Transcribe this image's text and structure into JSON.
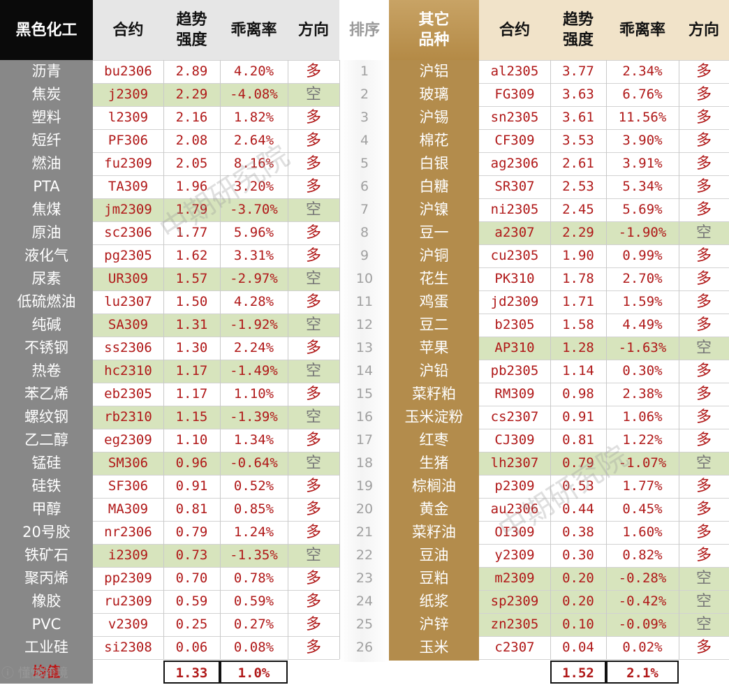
{
  "left": {
    "headers": {
      "category": "黑色化工",
      "contract": "合约",
      "trend": "趋势\n强度",
      "deviation": "乖离率",
      "direction": "方向"
    },
    "rows": [
      {
        "name": "沥青",
        "contract": "bu2306",
        "trend": "2.89",
        "deviation": "4.20%",
        "direction": "多"
      },
      {
        "name": "焦炭",
        "contract": "j2309",
        "trend": "2.29",
        "deviation": "-4.08%",
        "direction": "空"
      },
      {
        "name": "塑料",
        "contract": "l2309",
        "trend": "2.16",
        "deviation": "1.82%",
        "direction": "多"
      },
      {
        "name": "短纤",
        "contract": "PF306",
        "trend": "2.08",
        "deviation": "2.64%",
        "direction": "多"
      },
      {
        "name": "燃油",
        "contract": "fu2309",
        "trend": "2.05",
        "deviation": "8.16%",
        "direction": "多"
      },
      {
        "name": "PTA",
        "contract": "TA309",
        "trend": "1.96",
        "deviation": "3.20%",
        "direction": "多"
      },
      {
        "name": "焦煤",
        "contract": "jm2309",
        "trend": "1.79",
        "deviation": "-3.70%",
        "direction": "空"
      },
      {
        "name": "原油",
        "contract": "sc2306",
        "trend": "1.77",
        "deviation": "5.96%",
        "direction": "多"
      },
      {
        "name": "液化气",
        "contract": "pg2305",
        "trend": "1.62",
        "deviation": "3.31%",
        "direction": "多"
      },
      {
        "name": "尿素",
        "contract": "UR309",
        "trend": "1.57",
        "deviation": "-2.97%",
        "direction": "空"
      },
      {
        "name": "低硫燃油",
        "contract": "lu2307",
        "trend": "1.50",
        "deviation": "4.28%",
        "direction": "多"
      },
      {
        "name": "纯碱",
        "contract": "SA309",
        "trend": "1.31",
        "deviation": "-1.92%",
        "direction": "空"
      },
      {
        "name": "不锈钢",
        "contract": "ss2306",
        "trend": "1.30",
        "deviation": "2.24%",
        "direction": "多"
      },
      {
        "name": "热卷",
        "contract": "hc2310",
        "trend": "1.17",
        "deviation": "-1.49%",
        "direction": "空"
      },
      {
        "name": "苯乙烯",
        "contract": "eb2305",
        "trend": "1.17",
        "deviation": "1.10%",
        "direction": "多"
      },
      {
        "name": "螺纹钢",
        "contract": "rb2310",
        "trend": "1.15",
        "deviation": "-1.39%",
        "direction": "空"
      },
      {
        "name": "乙二醇",
        "contract": "eg2309",
        "trend": "1.10",
        "deviation": "1.34%",
        "direction": "多"
      },
      {
        "name": "锰硅",
        "contract": "SM306",
        "trend": "0.96",
        "deviation": "-0.64%",
        "direction": "空"
      },
      {
        "name": "硅铁",
        "contract": "SF306",
        "trend": "0.91",
        "deviation": "0.52%",
        "direction": "多"
      },
      {
        "name": "甲醇",
        "contract": "MA309",
        "trend": "0.81",
        "deviation": "0.85%",
        "direction": "多"
      },
      {
        "name": "20号胶",
        "contract": "nr2306",
        "trend": "0.79",
        "deviation": "1.24%",
        "direction": "多"
      },
      {
        "name": "铁矿石",
        "contract": "i2309",
        "trend": "0.73",
        "deviation": "-1.35%",
        "direction": "空"
      },
      {
        "name": "聚丙烯",
        "contract": "pp2309",
        "trend": "0.70",
        "deviation": "0.78%",
        "direction": "多"
      },
      {
        "name": "橡胶",
        "contract": "ru2309",
        "trend": "0.59",
        "deviation": "0.59%",
        "direction": "多"
      },
      {
        "name": "PVC",
        "contract": "v2309",
        "trend": "0.25",
        "deviation": "0.27%",
        "direction": "多"
      },
      {
        "name": "工业硅",
        "contract": "si2308",
        "trend": "0.06",
        "deviation": "0.08%",
        "direction": "多"
      }
    ],
    "average_label": "均值",
    "average_trend": "1.33",
    "average_deviation": "1.0%"
  },
  "rank": {
    "header": "排序",
    "values": [
      "1",
      "2",
      "3",
      "4",
      "5",
      "6",
      "7",
      "8",
      "9",
      "10",
      "11",
      "12",
      "13",
      "14",
      "15",
      "16",
      "17",
      "18",
      "19",
      "20",
      "21",
      "22",
      "23",
      "24",
      "25",
      "26"
    ]
  },
  "right": {
    "headers": {
      "category": "其它\n品种",
      "contract": "合约",
      "trend": "趋势\n强度",
      "deviation": "乖离率",
      "direction": "方向"
    },
    "rows": [
      {
        "name": "沪铝",
        "contract": "al2305",
        "trend": "3.77",
        "deviation": "2.34%",
        "direction": "多"
      },
      {
        "name": "玻璃",
        "contract": "FG309",
        "trend": "3.63",
        "deviation": "6.76%",
        "direction": "多"
      },
      {
        "name": "沪锡",
        "contract": "sn2305",
        "trend": "3.61",
        "deviation": "11.56%",
        "direction": "多"
      },
      {
        "name": "棉花",
        "contract": "CF309",
        "trend": "3.53",
        "deviation": "3.90%",
        "direction": "多"
      },
      {
        "name": "白银",
        "contract": "ag2306",
        "trend": "2.61",
        "deviation": "3.91%",
        "direction": "多"
      },
      {
        "name": "白糖",
        "contract": "SR307",
        "trend": "2.53",
        "deviation": "5.34%",
        "direction": "多"
      },
      {
        "name": "沪镍",
        "contract": "ni2305",
        "trend": "2.45",
        "deviation": "5.69%",
        "direction": "多"
      },
      {
        "name": "豆一",
        "contract": "a2307",
        "trend": "2.29",
        "deviation": "-1.90%",
        "direction": "空"
      },
      {
        "name": "沪铜",
        "contract": "cu2305",
        "trend": "1.90",
        "deviation": "0.99%",
        "direction": "多"
      },
      {
        "name": "花生",
        "contract": "PK310",
        "trend": "1.78",
        "deviation": "2.70%",
        "direction": "多"
      },
      {
        "name": "鸡蛋",
        "contract": "jd2309",
        "trend": "1.71",
        "deviation": "1.59%",
        "direction": "多"
      },
      {
        "name": "豆二",
        "contract": "b2305",
        "trend": "1.58",
        "deviation": "4.49%",
        "direction": "多"
      },
      {
        "name": "苹果",
        "contract": "AP310",
        "trend": "1.28",
        "deviation": "-1.63%",
        "direction": "空"
      },
      {
        "name": "沪铅",
        "contract": "pb2305",
        "trend": "1.14",
        "deviation": "0.30%",
        "direction": "多"
      },
      {
        "name": "菜籽粕",
        "contract": "RM309",
        "trend": "0.98",
        "deviation": "2.38%",
        "direction": "多"
      },
      {
        "name": "玉米淀粉",
        "contract": "cs2307",
        "trend": "0.91",
        "deviation": "1.06%",
        "direction": "多"
      },
      {
        "name": "红枣",
        "contract": "CJ309",
        "trend": "0.81",
        "deviation": "1.22%",
        "direction": "多"
      },
      {
        "name": "生猪",
        "contract": "lh2307",
        "trend": "0.79",
        "deviation": "-1.07%",
        "direction": "空"
      },
      {
        "name": "棕榈油",
        "contract": "p2309",
        "trend": "0.53",
        "deviation": "1.77%",
        "direction": "多"
      },
      {
        "name": "黄金",
        "contract": "au2306",
        "trend": "0.44",
        "deviation": "0.45%",
        "direction": "多"
      },
      {
        "name": "菜籽油",
        "contract": "OI309",
        "trend": "0.38",
        "deviation": "1.60%",
        "direction": "多"
      },
      {
        "name": "豆油",
        "contract": "y2309",
        "trend": "0.30",
        "deviation": "0.82%",
        "direction": "多"
      },
      {
        "name": "豆粕",
        "contract": "m2309",
        "trend": "0.20",
        "deviation": "-0.28%",
        "direction": "空"
      },
      {
        "name": "纸浆",
        "contract": "sp2309",
        "trend": "0.20",
        "deviation": "-0.42%",
        "direction": "空"
      },
      {
        "name": "沪锌",
        "contract": "zn2305",
        "trend": "0.10",
        "deviation": "-0.09%",
        "direction": "空"
      },
      {
        "name": "玉米",
        "contract": "c2307",
        "trend": "0.04",
        "deviation": "0.02%",
        "direction": "多"
      }
    ],
    "average_trend": "1.52",
    "average_deviation": "2.1%"
  },
  "watermark": "中期研究院",
  "brand_mark": "懂懂跨境",
  "colors": {
    "long": "#b01818",
    "short_fill": "#d7e4bd",
    "left_category_bg": "#888888",
    "right_category_bg": "#b38c4c"
  }
}
